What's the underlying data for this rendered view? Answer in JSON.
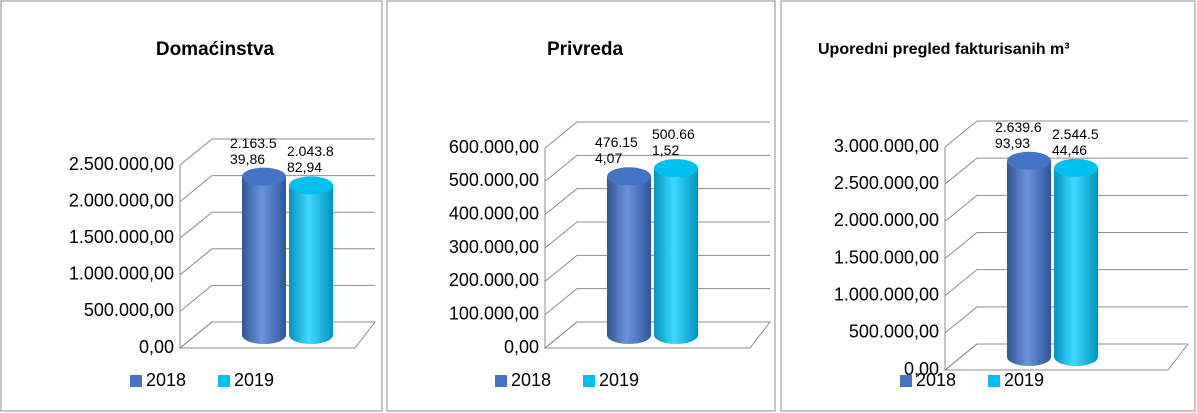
{
  "chart_data": [
    {
      "type": "bar",
      "title": "Domaćinstva",
      "series": [
        {
          "name": "2018",
          "color": "#4472c4",
          "values": [
            2163539.86
          ],
          "value_labels": [
            "2.163.539,86"
          ]
        },
        {
          "name": "2019",
          "color": "#00c0f0",
          "values": [
            2043882.94
          ],
          "value_labels": [
            "2.043.882,94"
          ]
        }
      ],
      "ylim": [
        0,
        2500000
      ],
      "yticks": [
        {
          "value": 0,
          "label": "0,00"
        },
        {
          "value": 500000,
          "label": "500.000,00"
        },
        {
          "value": 1000000,
          "label": "1.000.000,00"
        },
        {
          "value": 1500000,
          "label": "1.500.000,00"
        },
        {
          "value": 2000000,
          "label": "2.000.000,00"
        },
        {
          "value": 2500000,
          "label": "2.500.000,00"
        }
      ],
      "grid": true,
      "legend": "bottom"
    },
    {
      "type": "bar",
      "title": "Privreda",
      "series": [
        {
          "name": "2018",
          "color": "#4472c4",
          "values": [
            476154.07
          ],
          "value_labels": [
            "476.154,07"
          ]
        },
        {
          "name": "2019",
          "color": "#00c0f0",
          "values": [
            500661.52
          ],
          "value_labels": [
            "500.661,52"
          ]
        }
      ],
      "ylim": [
        0,
        600000
      ],
      "yticks": [
        {
          "value": 0,
          "label": "0,00"
        },
        {
          "value": 100000,
          "label": "100.000,00"
        },
        {
          "value": 200000,
          "label": "200.000,00"
        },
        {
          "value": 300000,
          "label": "300.000,00"
        },
        {
          "value": 400000,
          "label": "400.000,00"
        },
        {
          "value": 500000,
          "label": "500.000,00"
        },
        {
          "value": 600000,
          "label": "600.000,00"
        }
      ],
      "grid": true,
      "legend": "bottom"
    },
    {
      "type": "bar",
      "title": "Uporedni pregled fakturisanih m³",
      "series": [
        {
          "name": "2018",
          "color": "#4472c4",
          "values": [
            2639693.93
          ],
          "value_labels": [
            "2.639.693,93"
          ]
        },
        {
          "name": "2019",
          "color": "#00c0f0",
          "values": [
            2544544.46
          ],
          "value_labels": [
            "2.544.544,46"
          ]
        }
      ],
      "ylim": [
        0,
        3000000
      ],
      "yticks": [
        {
          "value": 0,
          "label": "0,00"
        },
        {
          "value": 500000,
          "label": "500.000,00"
        },
        {
          "value": 1000000,
          "label": "1.000.000,00"
        },
        {
          "value": 1500000,
          "label": "1.500.000,00"
        },
        {
          "value": 2000000,
          "label": "2.000.000,00"
        },
        {
          "value": 2500000,
          "label": "2.500.000,00"
        },
        {
          "value": 3000000,
          "label": "3.000.000,00"
        }
      ],
      "grid": true,
      "legend": "bottom"
    }
  ]
}
